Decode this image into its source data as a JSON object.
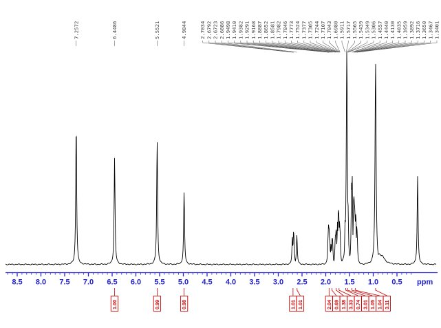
{
  "colors": {
    "axis": "#2525cd",
    "integral": "#cc0000",
    "trace": "#000000",
    "peak_label": "#3d3d3d",
    "background": "#ffffff"
  },
  "chart_data": {
    "type": "line",
    "title": "",
    "xlabel": "ppm",
    "ylabel": "",
    "x_axis": {
      "unit": "ppm",
      "inverted": true,
      "min": 0.0,
      "max": 8.8,
      "tick_step": 0.5,
      "minor_tick_step": 0.1,
      "tick_labels": [
        "8.5",
        "8.0",
        "7.5",
        "7.0",
        "6.5",
        "6.0",
        "5.5",
        "5.0",
        "4.5",
        "4.0",
        "3.5",
        "3.0",
        "2.5",
        "2.0",
        "1.5",
        "1.0",
        "0.5"
      ]
    },
    "peak_labels": [
      "7.2572",
      "6.4486",
      "5.5521",
      "4.9844",
      "2.7034",
      "2.6792",
      "2.6723",
      "2.6086",
      "1.9498",
      "1.9410",
      "1.9382",
      "1.9291",
      "1.9168",
      "1.8887",
      "1.8652",
      "1.8581",
      "1.7982",
      "1.7846",
      "1.7773",
      "1.7524",
      "1.7377",
      "1.7305",
      "1.7244",
      "1.7107",
      "1.7043",
      "1.6980",
      "1.5911",
      "1.5717",
      "1.5565",
      "1.5439",
      "1.5349",
      "1.5306",
      "1.4557",
      "1.4440",
      "1.4130",
      "1.4035",
      "1.3959",
      "1.3892",
      "1.3716",
      "1.3650",
      "1.3467",
      "1.3401"
    ],
    "peaks": [
      {
        "ppm": 7.2572,
        "h": 0.655
      },
      {
        "ppm": 6.4486,
        "h": 0.495
      },
      {
        "ppm": 5.5521,
        "h": 0.575
      },
      {
        "ppm": 4.9844,
        "h": 0.335
      },
      {
        "ppm": 2.7034,
        "h": 0.125
      },
      {
        "ppm": 2.6792,
        "h": 0.155
      },
      {
        "ppm": 2.6723,
        "h": 0.145
      },
      {
        "ppm": 2.6086,
        "h": 0.135
      },
      {
        "ppm": 1.9498,
        "h": 0.145
      },
      {
        "ppm": 1.941,
        "h": 0.185
      },
      {
        "ppm": 1.9382,
        "h": 0.185
      },
      {
        "ppm": 1.9291,
        "h": 0.165
      },
      {
        "ppm": 1.9168,
        "h": 0.125
      },
      {
        "ppm": 1.8887,
        "h": 0.1
      },
      {
        "ppm": 1.8652,
        "h": 0.13
      },
      {
        "ppm": 1.8581,
        "h": 0.12
      },
      {
        "ppm": 1.7982,
        "h": 0.135
      },
      {
        "ppm": 1.7846,
        "h": 0.165
      },
      {
        "ppm": 1.7773,
        "h": 0.155
      },
      {
        "ppm": 1.7524,
        "h": 0.2
      },
      {
        "ppm": 1.7377,
        "h": 0.235
      },
      {
        "ppm": 1.7305,
        "h": 0.255
      },
      {
        "ppm": 1.7244,
        "h": 0.235
      },
      {
        "ppm": 1.7107,
        "h": 0.2
      },
      {
        "ppm": 1.7043,
        "h": 0.175
      },
      {
        "ppm": 1.698,
        "h": 0.155
      },
      {
        "ppm": 1.5911,
        "h": 0.22
      },
      {
        "ppm": 1.5717,
        "h": 0.28
      },
      {
        "ppm": 1.5565,
        "h": 1.0,
        "w": 0.9
      },
      {
        "ppm": 1.5439,
        "h": 0.33
      },
      {
        "ppm": 1.5349,
        "h": 0.3
      },
      {
        "ppm": 1.5306,
        "h": 0.28
      },
      {
        "ppm": 1.4557,
        "h": 0.38
      },
      {
        "ppm": 1.444,
        "h": 0.42
      },
      {
        "ppm": 1.413,
        "h": 0.3
      },
      {
        "ppm": 1.4035,
        "h": 0.33
      },
      {
        "ppm": 1.3959,
        "h": 0.3
      },
      {
        "ppm": 1.3892,
        "h": 0.28
      },
      {
        "ppm": 1.3716,
        "h": 0.24
      },
      {
        "ppm": 1.365,
        "h": 0.22
      },
      {
        "ppm": 1.3467,
        "h": 0.18
      },
      {
        "ppm": 1.3401,
        "h": 0.16
      },
      {
        "ppm": 0.951,
        "h": 0.945,
        "w": 0.9
      },
      {
        "ppm": 0.87,
        "h": 0.05,
        "w": 5
      },
      {
        "ppm": 0.815,
        "h": 0.04,
        "w": 5
      },
      {
        "ppm": 0.065,
        "h": 0.41
      }
    ],
    "integrals": [
      {
        "value": "1.00",
        "ppm": 6.449
      },
      {
        "value": "0.99",
        "ppm": 5.552
      },
      {
        "value": "0.98",
        "ppm": 4.984
      },
      {
        "value": "1.01",
        "ppm": 2.69
      },
      {
        "value": "1.01",
        "ppm": 2.605
      },
      {
        "value": "2.04",
        "ppm": 1.93
      },
      {
        "value": "0.69",
        "ppm": 1.87
      },
      {
        "value": "1.38",
        "ppm": 1.78
      },
      {
        "value": "3.33",
        "ppm": 1.72
      },
      {
        "value": "0.74",
        "ppm": 1.58
      },
      {
        "value": "3.01",
        "ppm": 1.54
      },
      {
        "value": "1.05",
        "ppm": 1.45
      },
      {
        "value": "1.04",
        "ppm": 1.38
      },
      {
        "value": "3.11",
        "ppm": 0.951
      }
    ]
  }
}
